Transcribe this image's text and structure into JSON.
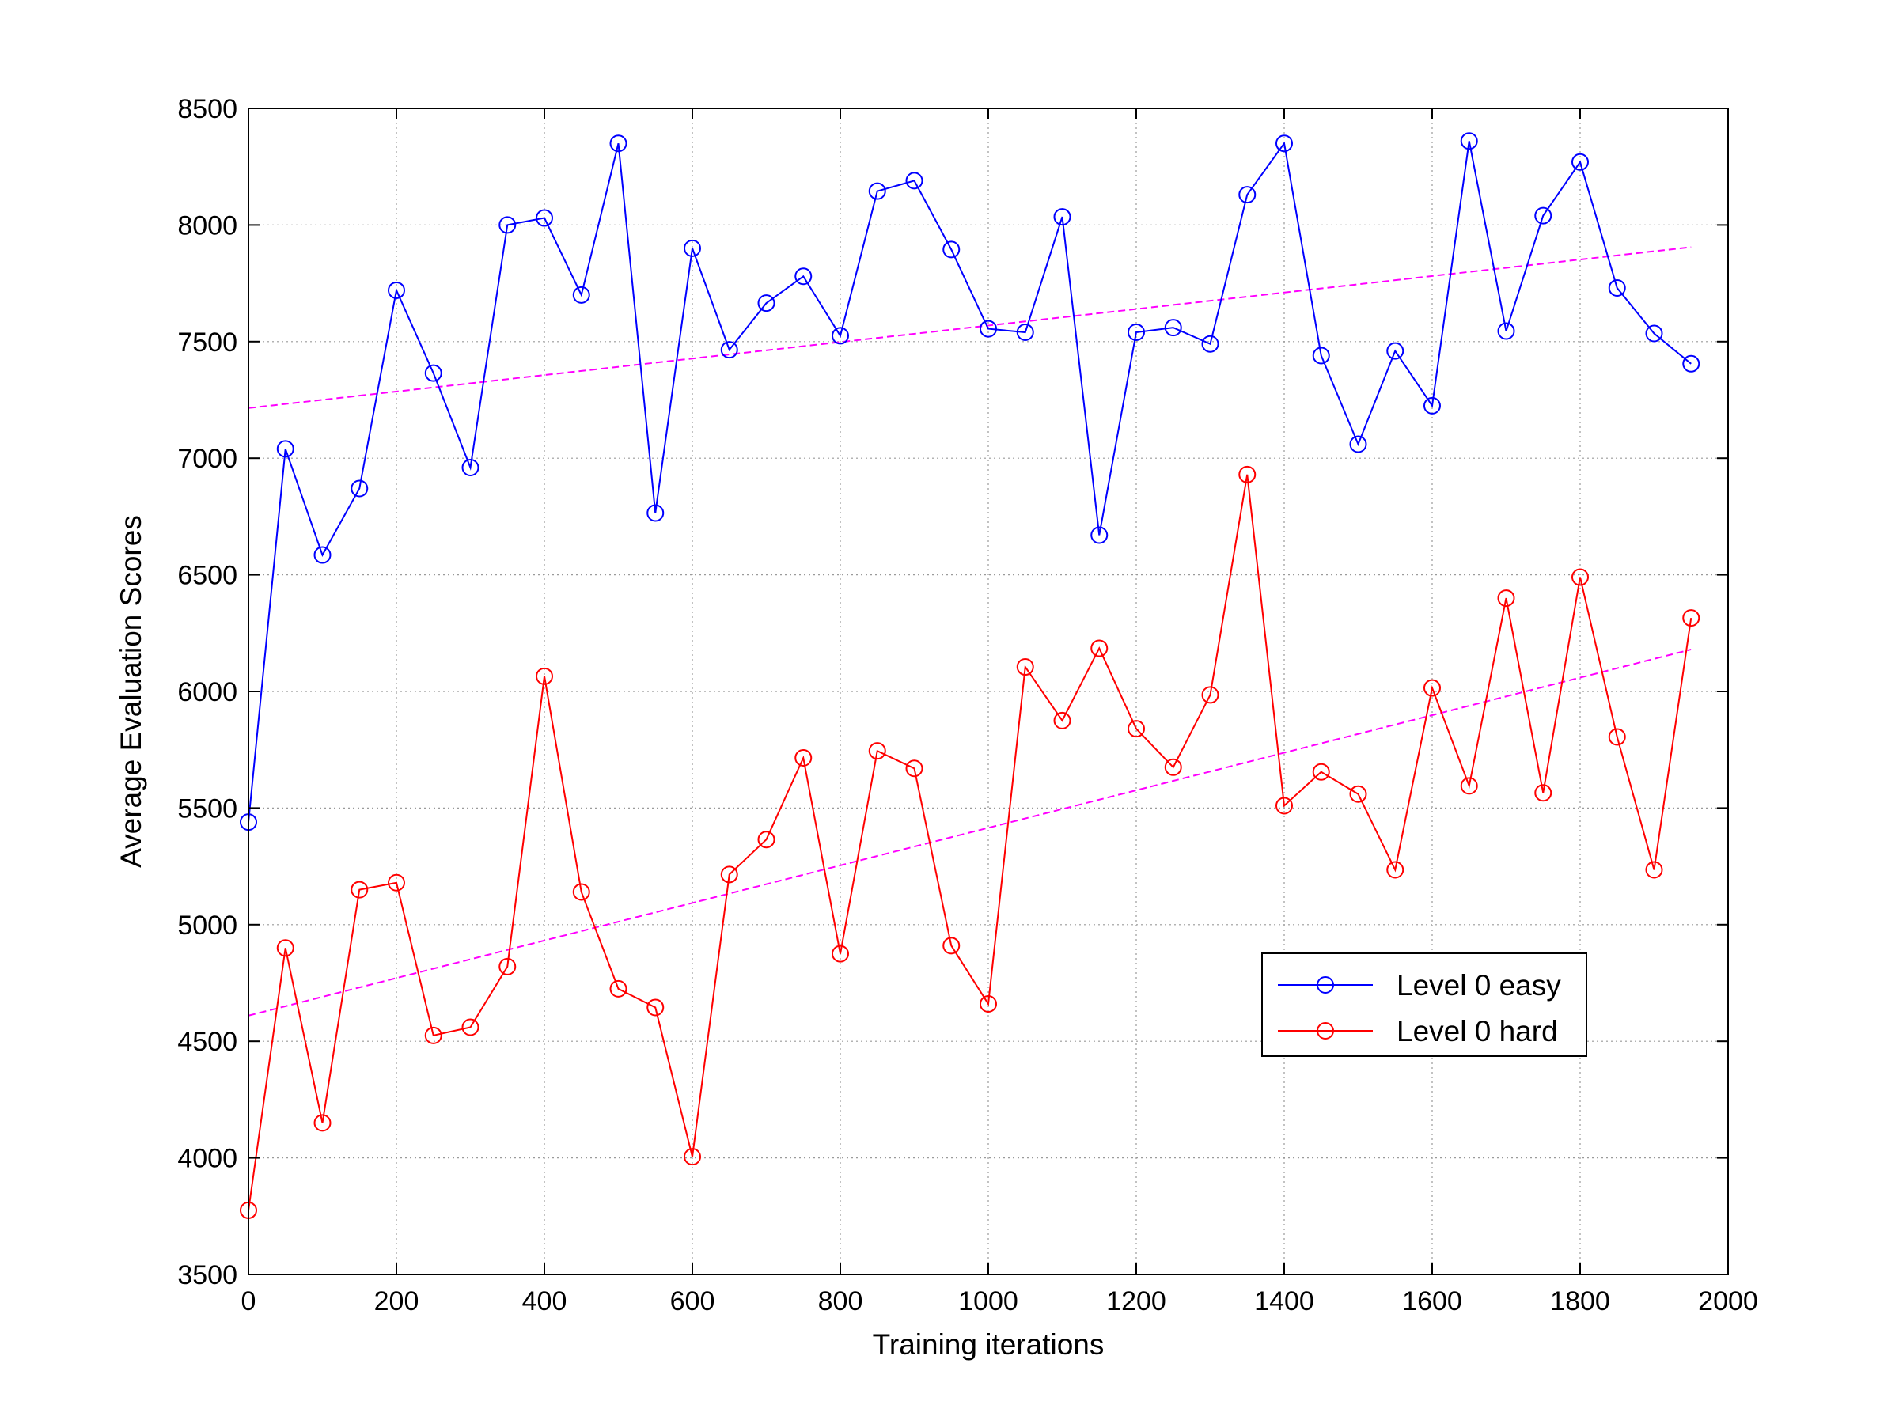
{
  "chart_data": {
    "type": "line",
    "title": "",
    "xlabel": "Training iterations",
    "ylabel": "Average Evaluation Scores",
    "xlim": [
      0,
      2000
    ],
    "ylim": [
      3500,
      8500
    ],
    "xticks": [
      0,
      200,
      400,
      600,
      800,
      1000,
      1200,
      1400,
      1600,
      1800,
      2000
    ],
    "yticks": [
      3500,
      4000,
      4500,
      5000,
      5500,
      6000,
      6500,
      7000,
      7500,
      8000,
      8500
    ],
    "grid": true,
    "legend_position": "lower-right",
    "x": [
      0,
      50,
      100,
      150,
      200,
      250,
      300,
      350,
      400,
      450,
      500,
      550,
      600,
      650,
      700,
      750,
      800,
      850,
      900,
      950,
      1000,
      1050,
      1100,
      1150,
      1200,
      1250,
      1300,
      1350,
      1400,
      1450,
      1500,
      1550,
      1600,
      1650,
      1700,
      1750,
      1800,
      1850,
      1900,
      1950
    ],
    "series": [
      {
        "name": "Level 0 easy",
        "color": "#0000ff",
        "marker": "circle",
        "values": [
          5440,
          7040,
          6585,
          6870,
          7720,
          7365,
          6960,
          8000,
          8030,
          7700,
          8350,
          6765,
          7900,
          7465,
          7665,
          7780,
          7525,
          8145,
          8190,
          7895,
          7555,
          7540,
          8035,
          6670,
          7540,
          7560,
          7490,
          8130,
          8350,
          7440,
          7060,
          7460,
          7225,
          8360,
          7545,
          8040,
          8270,
          7730,
          7535,
          7405
        ]
      },
      {
        "name": "Level 0 hard",
        "color": "#ff0000",
        "marker": "circle",
        "values": [
          3775,
          4900,
          4150,
          5150,
          5180,
          4525,
          4560,
          4820,
          6065,
          5140,
          4725,
          4645,
          4005,
          5215,
          5365,
          5715,
          4875,
          5745,
          5670,
          4910,
          4660,
          6105,
          5875,
          6185,
          5840,
          5675,
          5985,
          6930,
          5510,
          5655,
          5560,
          5235,
          6015,
          5595,
          6400,
          5565,
          6490,
          5805,
          5235,
          6315
        ]
      }
    ],
    "trendlines": [
      {
        "color": "#ff00ff",
        "style": "dashed",
        "x": [
          0,
          1950
        ],
        "y": [
          7215,
          7905
        ]
      },
      {
        "color": "#ff00ff",
        "style": "dashed",
        "x": [
          0,
          1950
        ],
        "y": [
          4610,
          6180
        ]
      }
    ]
  }
}
